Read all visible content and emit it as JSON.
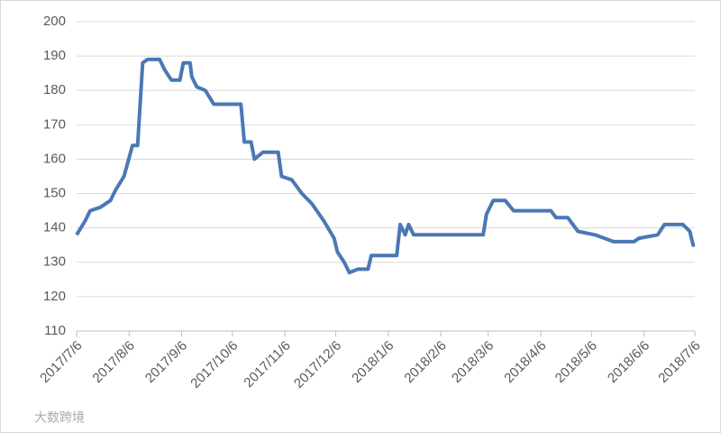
{
  "chart_data": {
    "type": "line",
    "watermark": "大数跨境",
    "x": [
      "2017-07-06",
      "2017-07-11",
      "2017-07-14",
      "2017-07-20",
      "2017-07-26",
      "2017-07-29",
      "2017-08-03",
      "2017-08-08",
      "2017-08-11",
      "2017-08-14",
      "2017-08-17",
      "2017-08-24",
      "2017-08-27",
      "2017-08-31",
      "2017-09-05",
      "2017-09-07",
      "2017-09-11",
      "2017-09-12",
      "2017-09-15",
      "2017-09-20",
      "2017-09-25",
      "2017-10-11",
      "2017-10-13",
      "2017-10-17",
      "2017-10-19",
      "2017-10-24",
      "2017-11-02",
      "2017-11-04",
      "2017-11-10",
      "2017-11-16",
      "2017-11-22",
      "2017-11-29",
      "2017-12-05",
      "2017-12-07",
      "2017-12-11",
      "2017-12-14",
      "2017-12-19",
      "2017-12-25",
      "2017-12-27",
      "2018-01-11",
      "2018-01-13",
      "2018-01-16",
      "2018-01-18",
      "2018-01-21",
      "2018-03-03",
      "2018-03-05",
      "2018-03-09",
      "2018-03-16",
      "2018-03-21",
      "2018-04-12",
      "2018-04-15",
      "2018-04-22",
      "2018-04-28",
      "2018-05-08",
      "2018-05-19",
      "2018-05-31",
      "2018-06-03",
      "2018-06-14",
      "2018-06-18",
      "2018-06-29",
      "2018-07-03",
      "2018-07-05",
      "2018-07-06"
    ],
    "series": [
      {
        "color": "#4a78b5",
        "values": [
          138,
          142,
          145,
          146,
          148,
          151,
          155,
          164,
          164,
          188,
          189,
          189,
          186,
          183,
          183,
          188,
          188,
          184,
          181,
          180,
          176,
          176,
          165,
          165,
          160,
          162,
          162,
          155,
          154,
          150,
          147,
          142,
          137,
          133,
          130,
          127,
          128,
          128,
          132,
          132,
          141,
          138,
          141,
          138,
          138,
          144,
          148,
          148,
          145,
          145,
          143,
          143,
          139,
          138,
          136,
          136,
          137,
          138,
          141,
          141,
          139,
          135,
          135
        ]
      }
    ],
    "xlim": [
      "2017-07-06",
      "2018-07-06"
    ],
    "xticks": [
      {
        "value": "2017-07-06",
        "label": "2017/7/6"
      },
      {
        "value": "2017-08-06",
        "label": "2017/8/6"
      },
      {
        "value": "2017-09-06",
        "label": "2017/9/6"
      },
      {
        "value": "2017-10-06",
        "label": "2017/10/6"
      },
      {
        "value": "2017-11-06",
        "label": "2017/11/6"
      },
      {
        "value": "2017-12-06",
        "label": "2017/12/6"
      },
      {
        "value": "2018-01-06",
        "label": "2018/1/6"
      },
      {
        "value": "2018-02-06",
        "label": "2018/2/6"
      },
      {
        "value": "2018-03-06",
        "label": "2018/3/6"
      },
      {
        "value": "2018-04-06",
        "label": "2018/4/6"
      },
      {
        "value": "2018-05-06",
        "label": "2018/5/6"
      },
      {
        "value": "2018-06-06",
        "label": "2018/6/6"
      },
      {
        "value": "2018-07-06",
        "label": "2018/7/6"
      }
    ],
    "ylim": [
      110,
      200
    ],
    "yticks": [
      110,
      120,
      130,
      140,
      150,
      160,
      170,
      180,
      190,
      200
    ],
    "grid": true
  }
}
